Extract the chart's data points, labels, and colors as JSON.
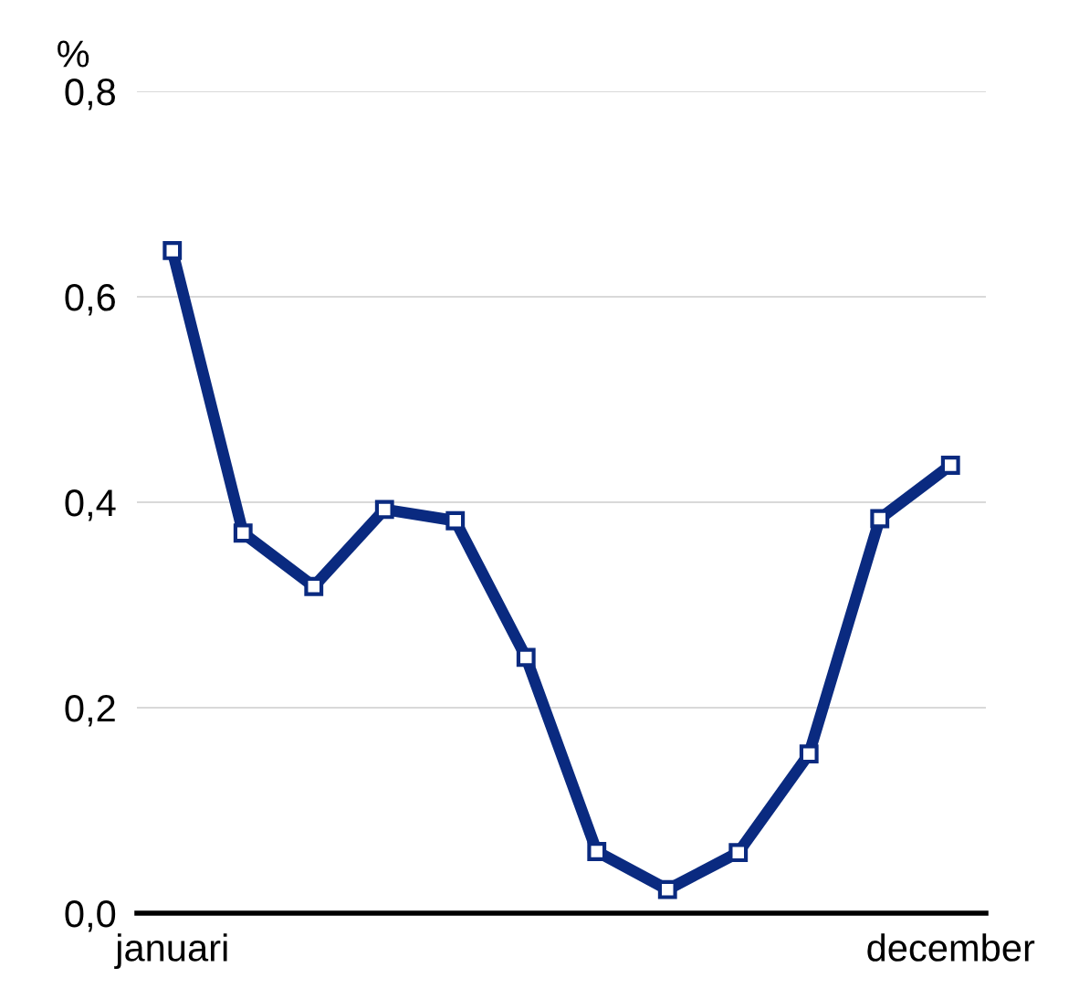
{
  "chart_data": {
    "type": "line",
    "ylabel": "%",
    "categories": [
      "januari",
      null,
      null,
      null,
      null,
      null,
      null,
      null,
      null,
      null,
      null,
      "december"
    ],
    "series": [
      {
        "color": "#0a2a80",
        "values": [
          0.645,
          0.37,
          0.318,
          0.393,
          0.382,
          0.249,
          0.06,
          0.023,
          0.059,
          0.155,
          0.384,
          0.436
        ]
      }
    ],
    "ylim": [
      0,
      0.8
    ],
    "yticks": [
      {
        "value": 0,
        "label": "0,0"
      },
      {
        "value": 0.2,
        "label": "0,2"
      },
      {
        "value": 0.4,
        "label": "0,4"
      },
      {
        "value": 0.6,
        "label": "0,6"
      },
      {
        "value": 0.8,
        "label": "0,8"
      }
    ],
    "grid": "y",
    "marker": "square",
    "line_style": "solid",
    "legend": false
  }
}
